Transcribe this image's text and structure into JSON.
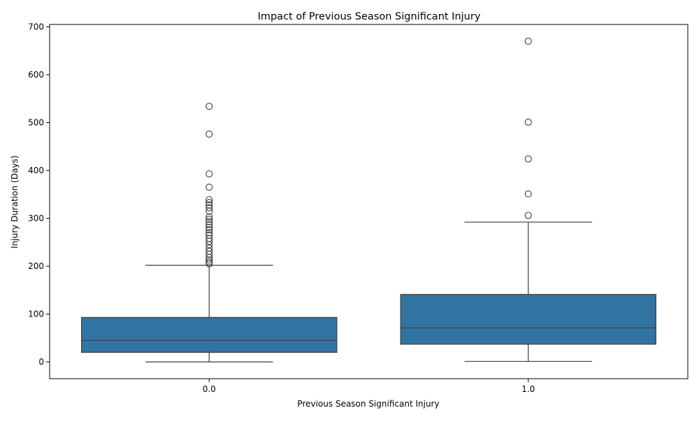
{
  "chart_data": {
    "type": "box",
    "title": "Impact of Previous Season Significant Injury",
    "xlabel": "Previous Season Significant Injury",
    "ylabel": "Injury Duration (Days)",
    "ylim": [
      -35,
      705
    ],
    "yticks": [
      0,
      100,
      200,
      300,
      400,
      500,
      600,
      700
    ],
    "grid": false,
    "box_color": "#3274a1",
    "line_color": "#3d3d3d",
    "categories": [
      "0.0",
      "1.0"
    ],
    "boxes": [
      {
        "category": "0.0",
        "whisker_low": 0,
        "q1": 20,
        "median": 45,
        "q3": 93,
        "whisker_high": 202,
        "outliers": [
          205,
          209,
          213,
          218,
          225,
          231,
          238,
          245,
          252,
          258,
          265,
          270,
          276,
          281,
          287,
          293,
          298,
          303,
          315,
          322,
          328,
          333,
          339,
          365,
          393,
          476,
          534
        ]
      },
      {
        "category": "1.0",
        "whisker_low": 1,
        "q1": 37,
        "median": 71,
        "q3": 141,
        "whisker_high": 292,
        "outliers": [
          306,
          351,
          424,
          501,
          670
        ]
      }
    ]
  }
}
